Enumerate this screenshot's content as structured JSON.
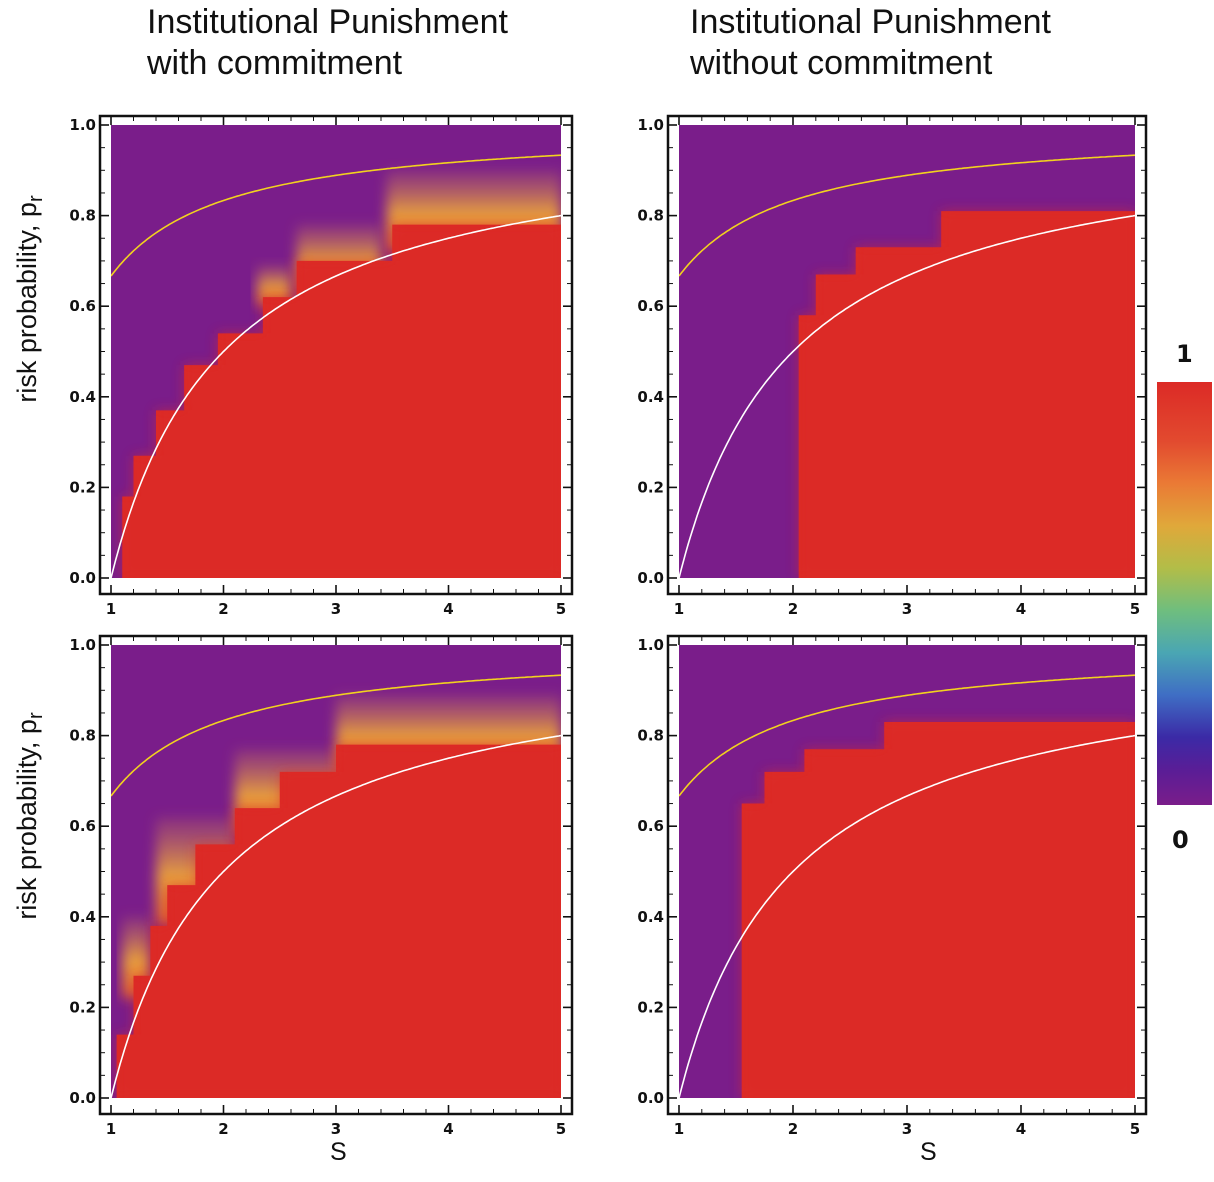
{
  "column_titles": [
    "Institutional Punishment\nwith commitment",
    "Institutional Punishment\nwithout commitment"
  ],
  "axis_labels": {
    "y": "risk probability,  p",
    "y_subscript": "r",
    "x": "S"
  },
  "colorbar": {
    "max_label": "1",
    "min_label": "0"
  },
  "colors": {
    "low": "#7a1d8a",
    "high": "#dc2a26",
    "upper_curve": "#f2d21f",
    "lower_curve": "#ffffff"
  },
  "chart_data": [
    {
      "type": "heatmap",
      "panel": "top-left",
      "xlim": [
        1,
        5
      ],
      "ylim": [
        0,
        1
      ],
      "xticks": [
        1,
        2,
        3,
        4,
        5
      ],
      "yticks": [
        0.0,
        0.2,
        0.4,
        0.6,
        0.8,
        1.0
      ],
      "boundary_steps": [
        [
          1.0,
          0.0
        ],
        [
          1.1,
          0.18
        ],
        [
          1.2,
          0.27
        ],
        [
          1.4,
          0.37
        ],
        [
          1.65,
          0.47
        ],
        [
          1.95,
          0.54
        ],
        [
          2.35,
          0.62
        ],
        [
          2.65,
          0.7
        ],
        [
          3.5,
          0.78
        ],
        [
          5.0,
          0.83
        ]
      ],
      "transition_zone": [
        [
          2.3,
          0.6,
          2.6,
          0.69
        ],
        [
          2.65,
          0.63,
          3.4,
          0.78
        ],
        [
          3.45,
          0.72,
          5.0,
          0.9
        ]
      ],
      "curves": [
        "upper",
        "lower"
      ]
    },
    {
      "type": "heatmap",
      "panel": "top-right",
      "xlim": [
        1,
        5
      ],
      "ylim": [
        0,
        1
      ],
      "xticks": [
        1,
        2,
        3,
        4,
        5
      ],
      "yticks": [
        0.0,
        0.2,
        0.4,
        0.6,
        0.8,
        1.0
      ],
      "boundary_steps": [
        [
          2.05,
          0.0
        ],
        [
          2.05,
          0.58
        ],
        [
          2.2,
          0.67
        ],
        [
          2.55,
          0.73
        ],
        [
          3.3,
          0.81
        ],
        [
          5.0,
          0.85
        ]
      ],
      "transition_zone": [],
      "curves": [
        "upper",
        "lower"
      ]
    },
    {
      "type": "heatmap",
      "panel": "bottom-left",
      "xlim": [
        1,
        5
      ],
      "ylim": [
        0,
        1
      ],
      "xticks": [
        1,
        2,
        3,
        4,
        5
      ],
      "yticks": [
        0.0,
        0.2,
        0.4,
        0.6,
        0.8,
        1.0
      ],
      "boundary_steps": [
        [
          1.0,
          0.0
        ],
        [
          1.05,
          0.14
        ],
        [
          1.2,
          0.27
        ],
        [
          1.35,
          0.38
        ],
        [
          1.5,
          0.47
        ],
        [
          1.75,
          0.56
        ],
        [
          2.1,
          0.64
        ],
        [
          2.5,
          0.72
        ],
        [
          3.0,
          0.78
        ],
        [
          5.0,
          0.84
        ]
      ],
      "transition_zone": [
        [
          1.1,
          0.22,
          1.35,
          0.4
        ],
        [
          1.4,
          0.38,
          2.1,
          0.62
        ],
        [
          2.1,
          0.58,
          3.4,
          0.77
        ],
        [
          3.0,
          0.72,
          5.0,
          0.89
        ]
      ],
      "curves": [
        "upper",
        "lower"
      ]
    },
    {
      "type": "heatmap",
      "panel": "bottom-right",
      "xlim": [
        1,
        5
      ],
      "ylim": [
        0,
        1
      ],
      "xticks": [
        1,
        2,
        3,
        4,
        5
      ],
      "yticks": [
        0.0,
        0.2,
        0.4,
        0.6,
        0.8,
        1.0
      ],
      "boundary_steps": [
        [
          1.55,
          0.0
        ],
        [
          1.55,
          0.65
        ],
        [
          1.75,
          0.72
        ],
        [
          2.1,
          0.77
        ],
        [
          2.8,
          0.83
        ],
        [
          5.0,
          0.86
        ]
      ],
      "transition_zone": [],
      "curves": [
        "upper",
        "lower"
      ]
    }
  ]
}
